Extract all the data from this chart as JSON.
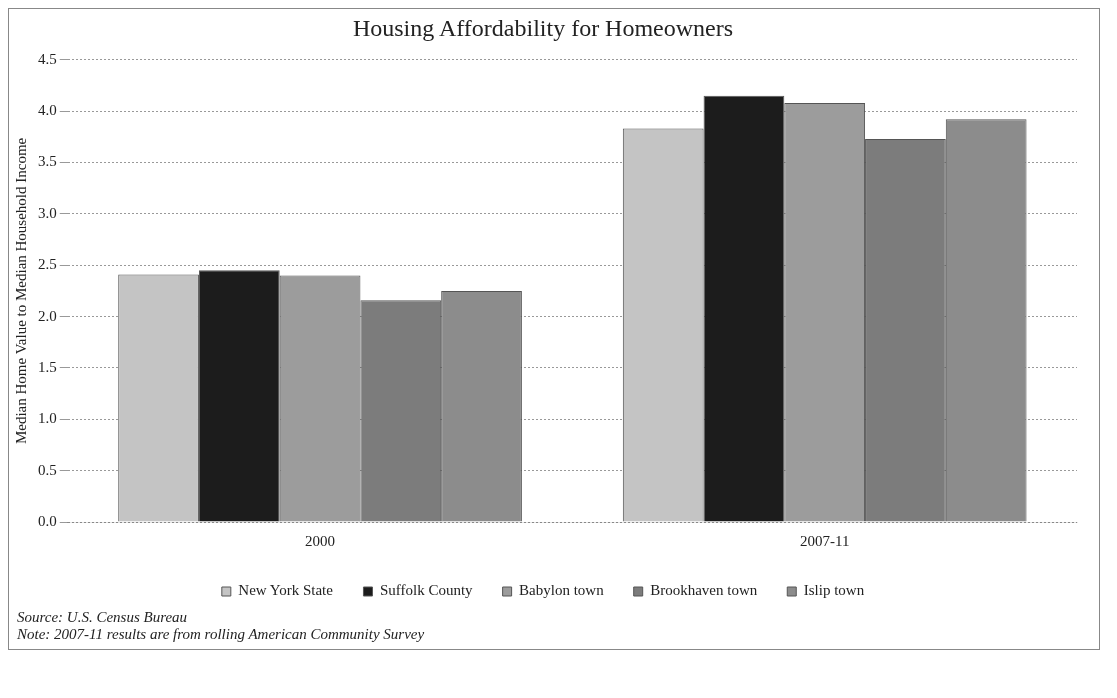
{
  "chart_data": {
    "type": "bar",
    "title": "Housing Affordability for Homeowners",
    "ylabel": "Median Home Value to Median Household Income",
    "categories": [
      "2000",
      "2007-11"
    ],
    "series": [
      {
        "name": "New York State",
        "color": "#c4c4c4",
        "values": [
          2.41,
          3.83
        ]
      },
      {
        "name": "Suffolk County",
        "color": "#1c1c1c",
        "values": [
          2.45,
          4.15
        ]
      },
      {
        "name": "Babylon town",
        "color": "#9c9c9c",
        "values": [
          2.4,
          4.08
        ]
      },
      {
        "name": "Brookhaven town",
        "color": "#7c7c7c",
        "values": [
          2.16,
          3.73
        ]
      },
      {
        "name": "Islip town",
        "color": "#8c8c8c",
        "values": [
          2.25,
          3.92
        ]
      }
    ],
    "ylim": [
      0,
      4.5
    ],
    "yticks": [
      {
        "value": 0,
        "label": "0.0"
      },
      0.5,
      {
        "value": 1,
        "label": "1.0"
      },
      1.5,
      {
        "value": 2,
        "label": "2.0"
      },
      2.5,
      {
        "value": 3,
        "label": "3.0"
      },
      3.5,
      {
        "value": 4,
        "label": "4.0"
      },
      4.5
    ],
    "grid": "y",
    "legend": "bottom",
    "annotations": [
      "Source: U.S. Census Bureau",
      "Note: 2007-11 results are from rolling American Community Survey"
    ]
  }
}
